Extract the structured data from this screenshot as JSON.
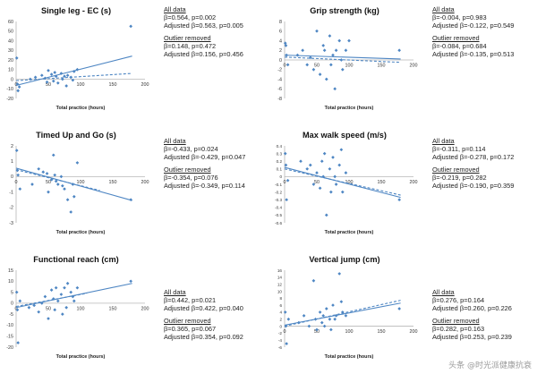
{
  "colors": {
    "point": "#4e86c3",
    "line": "#4e86c3",
    "axis": "#b8b8b8",
    "text": "#333333"
  },
  "watermark": "头条 @时光派健康抗衰",
  "chart_data": [
    {
      "type": "scatter",
      "title": "Single leg - EC (s)",
      "xlabel": "Total practice (hours)",
      "xlim": [
        0,
        200
      ],
      "ylim": [
        -20,
        60
      ],
      "xticks": [
        0,
        50,
        100,
        150,
        200
      ],
      "yticks": [
        -20,
        -10,
        0,
        10,
        20,
        30,
        40,
        50,
        60
      ],
      "points": [
        [
          1,
          22
        ],
        [
          2,
          -5
        ],
        [
          3,
          -12
        ],
        [
          5,
          -8
        ],
        [
          22,
          0
        ],
        [
          30,
          2
        ],
        [
          40,
          4
        ],
        [
          45,
          1
        ],
        [
          48,
          -3
        ],
        [
          50,
          9
        ],
        [
          55,
          5
        ],
        [
          58,
          -2
        ],
        [
          60,
          7
        ],
        [
          62,
          3
        ],
        [
          65,
          -4
        ],
        [
          70,
          6
        ],
        [
          72,
          0
        ],
        [
          75,
          3
        ],
        [
          78,
          -7
        ],
        [
          80,
          4
        ],
        [
          85,
          2
        ],
        [
          88,
          -1
        ],
        [
          90,
          8
        ],
        [
          95,
          10
        ],
        [
          178,
          55
        ]
      ],
      "lines": [
        {
          "style": "solid",
          "from": [
            0,
            -6.5
          ],
          "to": [
            180,
            24
          ]
        },
        {
          "style": "dashed",
          "from": [
            0,
            -1.5
          ],
          "to": [
            180,
            6
          ]
        }
      ],
      "stats": {
        "all_header": "All data",
        "all_1": "β=0.564, p=0.002",
        "all_2": "Adjusted β=0.563, p=0.005",
        "out_header": "Outlier removed",
        "out_1": "β=0.148, p=0.472",
        "out_2": "Adjusted β=0.156, p=0.456"
      }
    },
    {
      "type": "scatter",
      "title": "Grip strength (kg)",
      "xlabel": "Total practice (hours)",
      "xlim": [
        0,
        200
      ],
      "ylim": [
        -8,
        8
      ],
      "xticks": [
        0,
        50,
        100,
        150,
        200
      ],
      "yticks": [
        -8,
        -6,
        -4,
        -2,
        0,
        2,
        4,
        6,
        8
      ],
      "points": [
        [
          1,
          3.5
        ],
        [
          2,
          3
        ],
        [
          3,
          1
        ],
        [
          5,
          -1
        ],
        [
          20,
          1
        ],
        [
          28,
          2
        ],
        [
          35,
          -1
        ],
        [
          40,
          0.5
        ],
        [
          45,
          -2
        ],
        [
          50,
          6
        ],
        [
          55,
          -3
        ],
        [
          60,
          3
        ],
        [
          62,
          2
        ],
        [
          65,
          -4
        ],
        [
          70,
          5
        ],
        [
          72,
          -1
        ],
        [
          75,
          1
        ],
        [
          78,
          -6
        ],
        [
          80,
          2
        ],
        [
          85,
          4
        ],
        [
          88,
          0
        ],
        [
          90,
          -2
        ],
        [
          95,
          2
        ],
        [
          100,
          4
        ],
        [
          178,
          2
        ]
      ],
      "lines": [
        {
          "style": "solid",
          "from": [
            0,
            1.0
          ],
          "to": [
            180,
            0.2
          ]
        },
        {
          "style": "dashed",
          "from": [
            0,
            0.6
          ],
          "to": [
            180,
            -0.5
          ]
        }
      ],
      "stats": {
        "all_header": "All data",
        "all_1": "β=-0.004, p=0.983",
        "all_2": "Adjusted β=-0.122, p=0.549",
        "out_header": "Outlier removed",
        "out_1": "β=-0.084, p=0.684",
        "out_2": "Adjusted β=-0.135, p=0.513"
      }
    },
    {
      "type": "scatter",
      "title": "Timed Up and Go (s)",
      "xlabel": "Total practice (hours)",
      "xlim": [
        0,
        200
      ],
      "ylim": [
        -3,
        2
      ],
      "xticks": [
        0,
        50,
        100,
        150,
        200
      ],
      "yticks": [
        -3,
        -2,
        -1,
        0,
        1,
        2
      ],
      "points": [
        [
          1,
          1.7
        ],
        [
          2,
          0.4
        ],
        [
          3,
          0.1
        ],
        [
          6,
          -0.8
        ],
        [
          25,
          -0.5
        ],
        [
          35,
          0.5
        ],
        [
          42,
          0.3
        ],
        [
          48,
          0.2
        ],
        [
          50,
          -1.0
        ],
        [
          55,
          -0.2
        ],
        [
          58,
          1.4
        ],
        [
          60,
          0.1
        ],
        [
          62,
          -0.3
        ],
        [
          65,
          -0.5
        ],
        [
          70,
          0.0
        ],
        [
          72,
          -0.6
        ],
        [
          75,
          -0.8
        ],
        [
          80,
          -1.5
        ],
        [
          85,
          -2.3
        ],
        [
          88,
          -0.5
        ],
        [
          90,
          -1.3
        ],
        [
          95,
          0.9
        ],
        [
          178,
          -1.5
        ]
      ],
      "lines": [
        {
          "style": "solid",
          "from": [
            0,
            0.55
          ],
          "to": [
            180,
            -1.55
          ]
        },
        {
          "style": "dashed",
          "from": [
            0,
            0.45
          ],
          "to": [
            130,
            -0.9
          ]
        }
      ],
      "stats": {
        "all_header": "All data",
        "all_1": "β=-0.433, p=0.024",
        "all_2": "Adjusted β=-0.429, p=0.047",
        "out_header": "Outlier removed",
        "out_1": "β=-0.354, p=0.076",
        "out_2": "Adjusted β=-0.349, p=0.114"
      }
    },
    {
      "type": "scatter",
      "title": "Max walk speed (m/s)",
      "xlabel": "Total practice (hours)",
      "xlim": [
        0,
        200
      ],
      "ylim": [
        -0.6,
        0.4
      ],
      "xticks": [
        0,
        50,
        100,
        150,
        200
      ],
      "yticks": [
        -0.6,
        -0.5,
        -0.4,
        -0.3,
        -0.2,
        -0.1,
        0,
        0.1,
        0.2,
        0.3,
        0.4
      ],
      "points": [
        [
          1,
          0.3
        ],
        [
          2,
          0.15
        ],
        [
          3,
          -0.3
        ],
        [
          5,
          -0.05
        ],
        [
          25,
          0.2
        ],
        [
          35,
          0.1
        ],
        [
          40,
          0.15
        ],
        [
          45,
          -0.1
        ],
        [
          50,
          0.05
        ],
        [
          55,
          -0.15
        ],
        [
          58,
          0.2
        ],
        [
          60,
          0.0
        ],
        [
          62,
          0.3
        ],
        [
          65,
          -0.5
        ],
        [
          70,
          0.1
        ],
        [
          72,
          -0.2
        ],
        [
          75,
          0.25
        ],
        [
          78,
          0.0
        ],
        [
          80,
          -0.1
        ],
        [
          85,
          0.15
        ],
        [
          88,
          0.35
        ],
        [
          90,
          -0.2
        ],
        [
          95,
          0.05
        ],
        [
          178,
          -0.3
        ]
      ],
      "lines": [
        {
          "style": "solid",
          "from": [
            0,
            0.12
          ],
          "to": [
            180,
            -0.27
          ]
        },
        {
          "style": "dashed",
          "from": [
            0,
            0.1
          ],
          "to": [
            180,
            -0.24
          ]
        }
      ],
      "stats": {
        "all_header": "All data",
        "all_1": "β=-0.311, p=0.114",
        "all_2": "Adjusted β=-0.278, p=0.172",
        "out_header": "Outlier removed",
        "out_1": "β=-0.219, p=0.282",
        "out_2": "Adjusted β=-0.190, p=0.359"
      }
    },
    {
      "type": "scatter",
      "title": "Functional reach (cm)",
      "xlabel": "Total practice (hours)",
      "xlim": [
        0,
        200
      ],
      "ylim": [
        -20,
        15
      ],
      "xticks": [
        0,
        50,
        100,
        150,
        200
      ],
      "yticks": [
        -20,
        -15,
        -10,
        -5,
        0,
        5,
        10,
        15
      ],
      "points": [
        [
          1,
          5
        ],
        [
          2,
          -3
        ],
        [
          3,
          -18
        ],
        [
          6,
          1
        ],
        [
          20,
          -2
        ],
        [
          28,
          -1
        ],
        [
          35,
          -4
        ],
        [
          40,
          0
        ],
        [
          45,
          3
        ],
        [
          50,
          -7
        ],
        [
          55,
          6
        ],
        [
          58,
          2
        ],
        [
          60,
          -3
        ],
        [
          62,
          7
        ],
        [
          65,
          1
        ],
        [
          70,
          4
        ],
        [
          72,
          -5
        ],
        [
          75,
          7
        ],
        [
          78,
          -2
        ],
        [
          80,
          9
        ],
        [
          85,
          5
        ],
        [
          88,
          3
        ],
        [
          90,
          1
        ],
        [
          95,
          7
        ],
        [
          178,
          10
        ]
      ],
      "lines": [
        {
          "style": "solid",
          "from": [
            0,
            -2
          ],
          "to": [
            180,
            9
          ]
        },
        {
          "style": "dashed",
          "from": [
            0,
            -1.5
          ],
          "to": [
            110,
            4.5
          ]
        }
      ],
      "stats": {
        "all_header": "All data",
        "all_1": "β=0.442, p=0.021",
        "all_2": "Adjusted β=0.422, p=0.040",
        "out_header": "Outlier removed",
        "out_1": "β=0.365, p=0.067",
        "out_2": "Adjusted β=0.354, p=0.092"
      }
    },
    {
      "type": "scatter",
      "title": "Vertical jump (cm)",
      "xlabel": "Total practice (hours)",
      "xlim": [
        0,
        200
      ],
      "ylim": [
        -6,
        16
      ],
      "xticks": [
        0,
        50,
        100,
        150,
        200
      ],
      "yticks": [
        -6,
        -4,
        -2,
        0,
        2,
        4,
        6,
        8,
        10,
        12,
        14,
        16
      ],
      "points": [
        [
          1,
          4
        ],
        [
          2,
          0
        ],
        [
          3,
          -5
        ],
        [
          6,
          2
        ],
        [
          22,
          1
        ],
        [
          30,
          3
        ],
        [
          38,
          0
        ],
        [
          45,
          13
        ],
        [
          48,
          2
        ],
        [
          50,
          -1
        ],
        [
          55,
          4
        ],
        [
          58,
          1
        ],
        [
          60,
          3
        ],
        [
          62,
          0
        ],
        [
          65,
          5
        ],
        [
          70,
          2
        ],
        [
          72,
          -1
        ],
        [
          75,
          6
        ],
        [
          78,
          2
        ],
        [
          80,
          3
        ],
        [
          85,
          15
        ],
        [
          88,
          7
        ],
        [
          90,
          4
        ],
        [
          95,
          3
        ],
        [
          178,
          5
        ]
      ],
      "lines": [
        {
          "style": "solid",
          "from": [
            0,
            0.3
          ],
          "to": [
            180,
            6.6
          ]
        },
        {
          "style": "dashed",
          "from": [
            0,
            0.0
          ],
          "to": [
            180,
            7.4
          ]
        }
      ],
      "stats": {
        "all_header": "All data",
        "all_1": "β=0.276, p=0.164",
        "all_2": "Adjusted β=0.260, p=0.226",
        "out_header": "Outlier removed",
        "out_1": "β=0.282, p=0.163",
        "out_2": "Adjusted β=0.253, p=0.239"
      }
    }
  ]
}
